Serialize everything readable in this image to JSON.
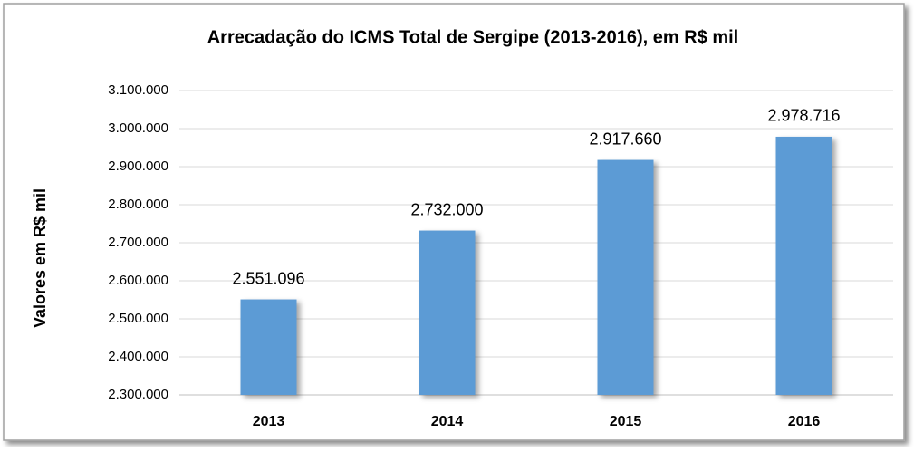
{
  "chart_data": {
    "type": "bar",
    "title": "Arrecadação do ICMS Total de Sergipe (2013-2016),  em R$ mil",
    "y_label": "Valores em R$ mil",
    "categories": [
      "2013",
      "2014",
      "2015",
      "2016"
    ],
    "values": [
      2551096,
      2732000,
      2917660,
      2978716
    ],
    "value_labels": [
      "2.551.096",
      "2.732.000",
      "2.917.660",
      "2.978.716"
    ],
    "color": "#5b9bd5",
    "ylim": [
      2300000,
      3100000
    ],
    "yticks": [
      {
        "value": 2300000,
        "label": "2.300.000"
      },
      {
        "value": 2400000,
        "label": "2.400.000"
      },
      {
        "value": 2500000,
        "label": "2.500.000"
      },
      {
        "value": 2600000,
        "label": "2.600.000"
      },
      {
        "value": 2700000,
        "label": "2.700.000"
      },
      {
        "value": 2800000,
        "label": "2.800.000"
      },
      {
        "value": 2900000,
        "label": "2.900.000"
      },
      {
        "value": 3000000,
        "label": "3.000.000"
      },
      {
        "value": 3100000,
        "label": "3.100.000"
      }
    ],
    "grid": true
  }
}
